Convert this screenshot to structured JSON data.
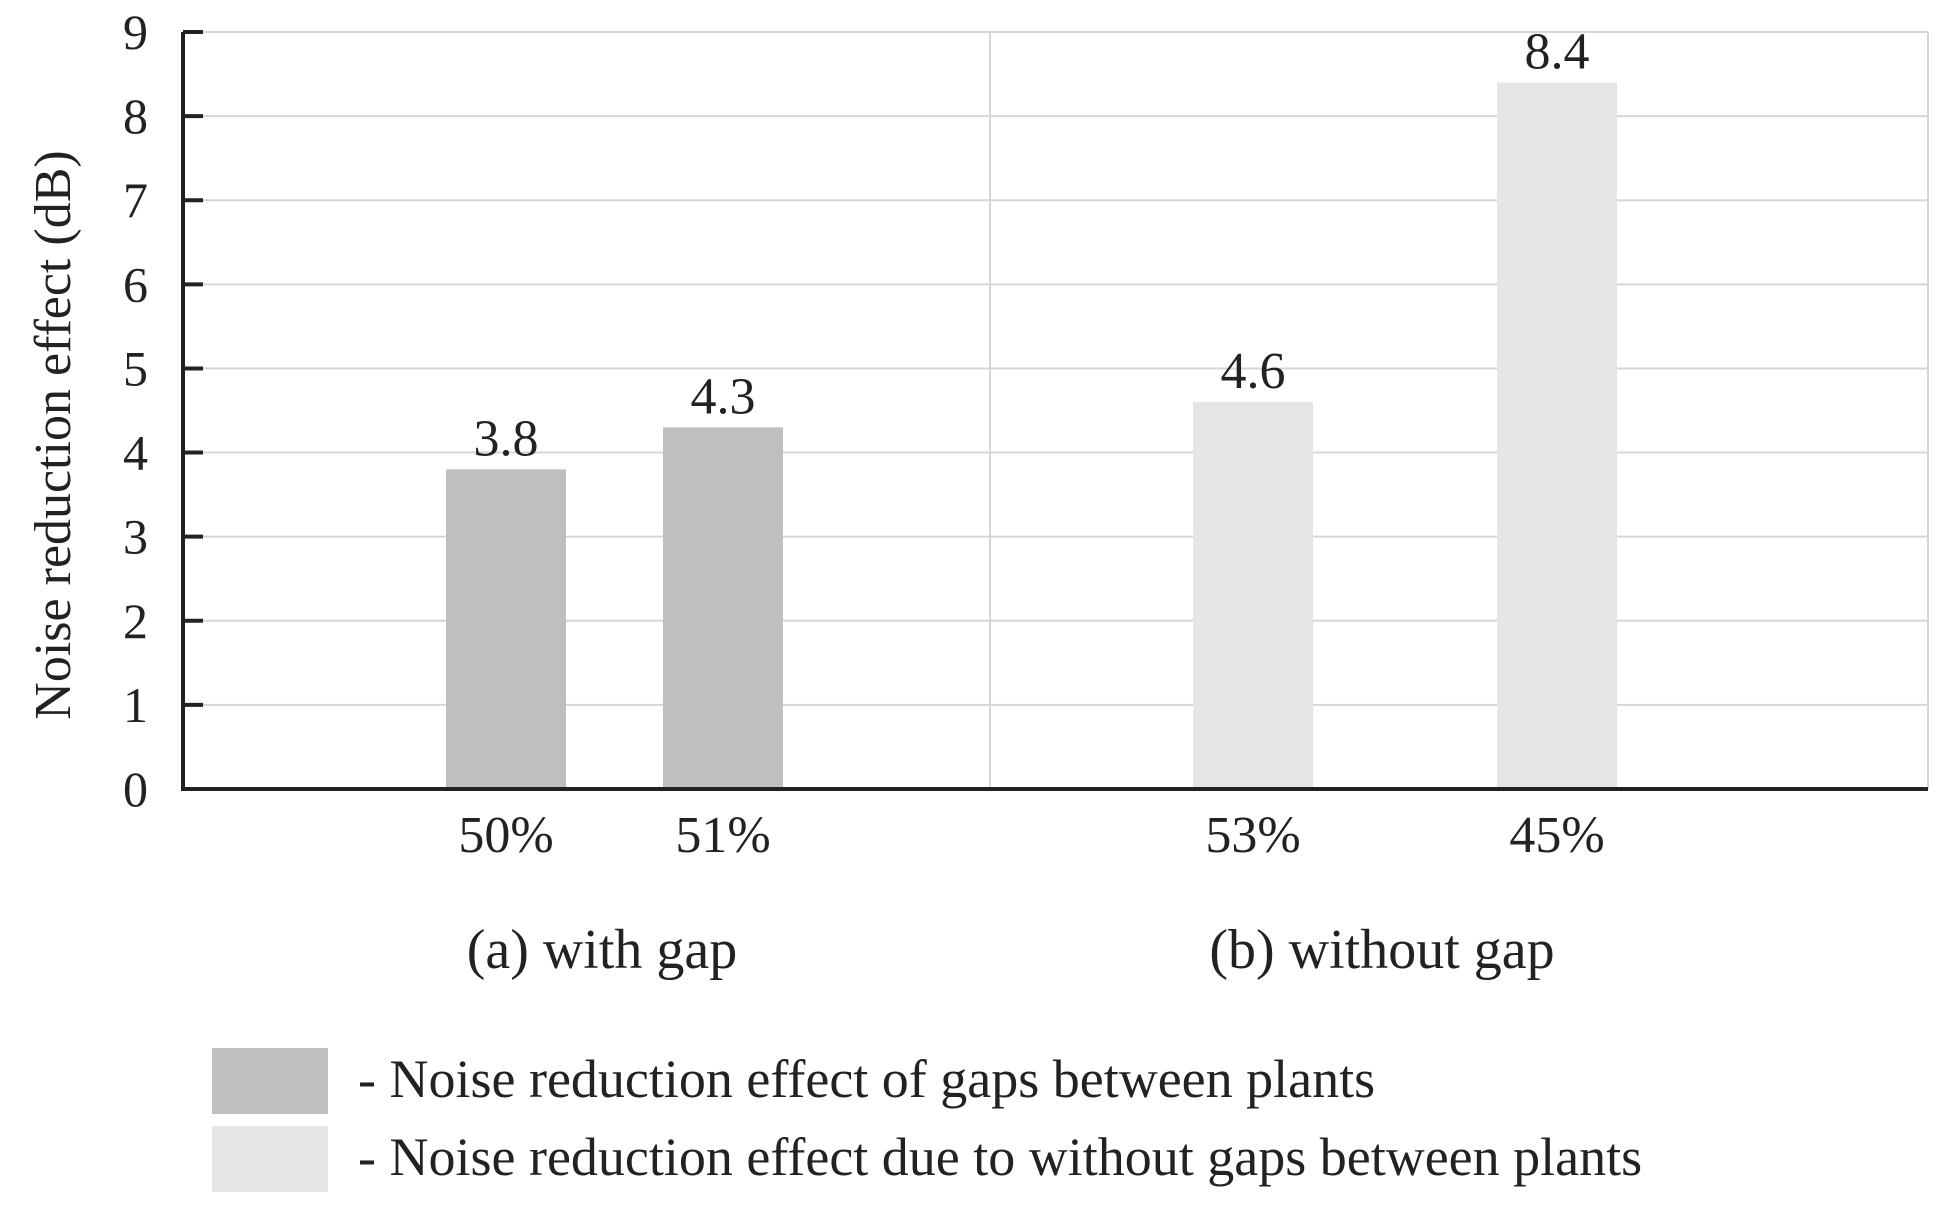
{
  "chart_data": {
    "type": "bar",
    "title": "",
    "ylabel": "Noise reduction effect (dB)",
    "xlabel": "",
    "ylim": [
      0,
      9
    ],
    "yticks": [
      0,
      1,
      2,
      3,
      4,
      5,
      6,
      7,
      8,
      9
    ],
    "grid": true,
    "groups": [
      {
        "label": "(a) with gap",
        "bars": [
          {
            "category": "50%",
            "value": 3.8,
            "value_label": "3.8",
            "series": "with_gap"
          },
          {
            "category": "51%",
            "value": 4.3,
            "value_label": "4.3",
            "series": "with_gap"
          }
        ]
      },
      {
        "label": "(b) without gap",
        "bars": [
          {
            "category": "53%",
            "value": 4.6,
            "value_label": "4.6",
            "series": "without_gap"
          },
          {
            "category": "45%",
            "value": 8.4,
            "value_label": "8.4",
            "series": "without_gap"
          }
        ]
      }
    ],
    "series": [
      {
        "id": "with_gap",
        "name": "- Noise reduction effect of gaps between plants",
        "color": "#bfbfbf"
      },
      {
        "id": "without_gap",
        "name": "- Noise reduction effect due to without gaps between plants",
        "color": "#e5e5e5"
      }
    ],
    "legend_position": "bottom-left"
  },
  "colors": {
    "axis": "#222222",
    "grid": "#d6d6d6",
    "text": "#222222"
  }
}
